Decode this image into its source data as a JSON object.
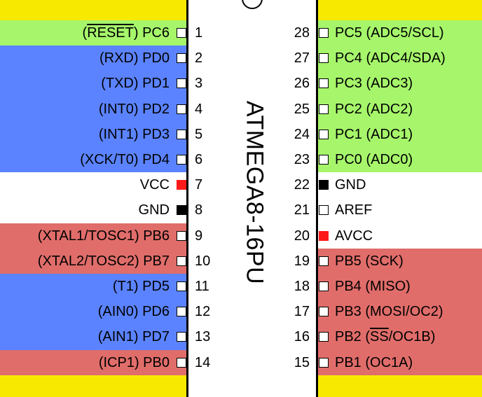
{
  "chip": {
    "name": "ATMEGA8-16PU"
  },
  "colors": {
    "background": "#f7ea00",
    "green": "#a6f56b",
    "blue": "#5b83ff",
    "red": "#e06d6a",
    "white": "#ffffff",
    "power_pin": "#ff1a1a",
    "ground_pin": "#000000"
  },
  "bands": [
    {
      "color": "green",
      "side": "left",
      "from_row": 0,
      "to_row": 0
    },
    {
      "color": "blue",
      "side": "left",
      "from_row": 1,
      "to_row": 5
    },
    {
      "color": "white",
      "side": "left",
      "from_row": 6,
      "to_row": 7
    },
    {
      "color": "red",
      "side": "left",
      "from_row": 8,
      "to_row": 9
    },
    {
      "color": "blue",
      "side": "left",
      "from_row": 10,
      "to_row": 12
    },
    {
      "color": "red",
      "side": "left",
      "from_row": 13,
      "to_row": 13
    },
    {
      "color": "green",
      "side": "right",
      "from_row": 0,
      "to_row": 5
    },
    {
      "color": "white",
      "side": "right",
      "from_row": 6,
      "to_row": 8
    },
    {
      "color": "red",
      "side": "right",
      "from_row": 9,
      "to_row": 13
    }
  ],
  "left_pins": [
    {
      "num": "1",
      "prefix": "(",
      "over": "RESET",
      "suffix": ") PC6",
      "pin": "open"
    },
    {
      "num": "2",
      "label": "(RXD) PD0",
      "pin": "open"
    },
    {
      "num": "3",
      "label": "(TXD) PD1",
      "pin": "open"
    },
    {
      "num": "4",
      "label": "(INT0) PD2",
      "pin": "open"
    },
    {
      "num": "5",
      "label": "(INT1) PD3",
      "pin": "open"
    },
    {
      "num": "6",
      "label": "(XCK/T0) PD4",
      "pin": "open"
    },
    {
      "num": "7",
      "label": "VCC",
      "pin": "power"
    },
    {
      "num": "8",
      "label": "GND",
      "pin": "ground"
    },
    {
      "num": "9",
      "label": "(XTAL1/TOSC1) PB6",
      "pin": "open"
    },
    {
      "num": "10",
      "label": "(XTAL2/TOSC2) PB7",
      "pin": "open"
    },
    {
      "num": "11",
      "label": "(T1) PD5",
      "pin": "open"
    },
    {
      "num": "12",
      "label": "(AIN0) PD6",
      "pin": "open"
    },
    {
      "num": "13",
      "label": "(AIN1) PD7",
      "pin": "open"
    },
    {
      "num": "14",
      "label": "(ICP1) PB0",
      "pin": "open"
    }
  ],
  "right_pins": [
    {
      "num": "28",
      "label": "PC5 (ADC5/SCL)",
      "pin": "open"
    },
    {
      "num": "27",
      "label": "PC4 (ADC4/SDA)",
      "pin": "open"
    },
    {
      "num": "26",
      "label": "PC3 (ADC3)",
      "pin": "open"
    },
    {
      "num": "25",
      "label": "PC2 (ADC2)",
      "pin": "open"
    },
    {
      "num": "24",
      "label": "PC1 (ADC1)",
      "pin": "open"
    },
    {
      "num": "23",
      "label": "PC0 (ADC0)",
      "pin": "open"
    },
    {
      "num": "22",
      "label": "GND",
      "pin": "ground"
    },
    {
      "num": "21",
      "label": "AREF",
      "pin": "open"
    },
    {
      "num": "20",
      "label": "AVCC",
      "pin": "power"
    },
    {
      "num": "19",
      "label": "PB5 (SCK)",
      "pin": "open"
    },
    {
      "num": "18",
      "label": "PB4 (MISO)",
      "pin": "open"
    },
    {
      "num": "17",
      "label": "PB3 (MOSI/OC2)",
      "pin": "open"
    },
    {
      "num": "16",
      "prefix": "PB2 (",
      "over": "SS",
      "suffix": "/OC1B)",
      "pin": "open"
    },
    {
      "num": "15",
      "label": "PB1 (OC1A)",
      "pin": "open"
    }
  ]
}
